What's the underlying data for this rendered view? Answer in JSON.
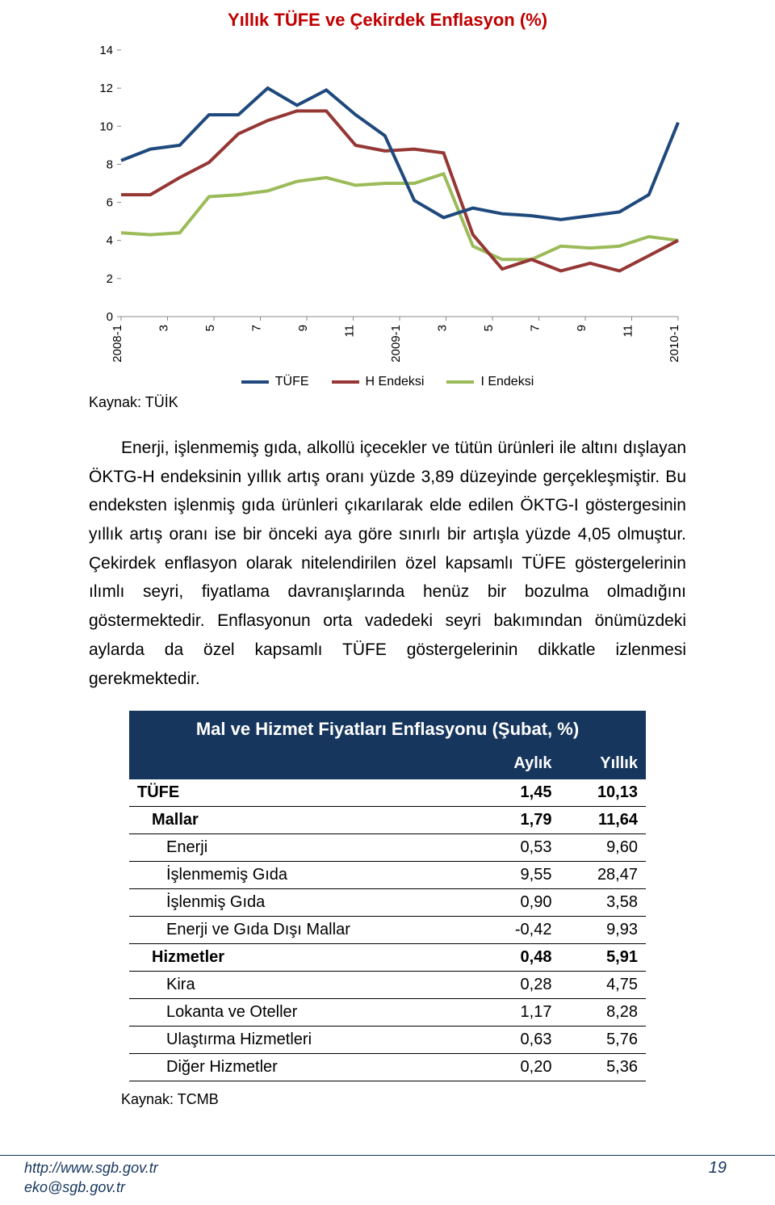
{
  "chart": {
    "type": "line",
    "title": "Yıllık TÜFE ve Çekirdek Enflasyon (%)",
    "title_color": "#c00000",
    "title_fontsize": 22,
    "background_color": "#ffffff",
    "xlabels": [
      "2008-1",
      "3",
      "5",
      "7",
      "9",
      "11",
      "2009-1",
      "3",
      "5",
      "7",
      "9",
      "11",
      "2010-1"
    ],
    "yticks": [
      0,
      2,
      4,
      6,
      8,
      10,
      12,
      14
    ],
    "ylim": [
      0,
      14
    ],
    "series": [
      {
        "name": "TÜFE",
        "color": "#1f497d",
        "values": [
          8.2,
          8.8,
          9.0,
          10.6,
          10.6,
          12.0,
          11.1,
          11.9,
          10.6,
          9.5,
          6.1,
          5.2,
          5.7,
          5.4,
          5.3,
          5.1,
          5.3,
          5.5,
          6.4,
          10.2
        ]
      },
      {
        "name": "H Endeksi",
        "color": "#953735",
        "values": [
          6.4,
          6.4,
          7.3,
          8.1,
          9.6,
          10.3,
          10.8,
          10.8,
          9.0,
          8.7,
          8.8,
          8.6,
          4.3,
          2.5,
          3.0,
          2.4,
          2.8,
          2.4,
          3.2,
          4.0
        ]
      },
      {
        "name": "I Endeksi",
        "color": "#9bbb59",
        "values": [
          4.4,
          4.3,
          4.4,
          6.3,
          6.4,
          6.6,
          7.1,
          7.3,
          6.9,
          7.0,
          7.0,
          7.5,
          3.7,
          3.0,
          3.0,
          3.7,
          3.6,
          3.7,
          4.2,
          4.0
        ]
      }
    ],
    "legend_labels": {
      "tufe": "TÜFE",
      "h": "H Endeksi",
      "i": "I Endeksi"
    },
    "source": "Kaynak: TÜİK",
    "label_fontsize": 15
  },
  "body": {
    "paragraph": "Enerji, işlenmemiş gıda, alkollü içecekler ve tütün ürünleri ile altını dışlayan ÖKTG-H endeksinin yıllık artış oranı yüzde 3,89 düzeyinde gerçekleşmiştir. Bu endeksten işlenmiş gıda ürünleri çıkarılarak elde edilen ÖKTG-I göstergesinin yıllık artış oranı ise bir önceki aya göre sınırlı bir artışla yüzde 4,05 olmuştur. Çekirdek enflasyon olarak nitelendirilen özel kapsamlı TÜFE göstergelerinin ılımlı seyri, fiyatlama davranışlarında henüz bir bozulma olmadığını göstermektedir. Enflasyonun orta vadedeki seyri bakımından önümüzdeki aylarda da özel kapsamlı TÜFE göstergelerinin dikkatle izlenmesi gerekmektedir."
  },
  "table": {
    "title": "Mal ve Hizmet Fiyatları Enflasyonu (Şubat, %)",
    "header_bg": "#17365d",
    "header_fg": "#ffffff",
    "columns": [
      "",
      "Aylık",
      "Yıllık"
    ],
    "rows": [
      {
        "label": "TÜFE",
        "aylik": "1,45",
        "yillik": "10,13",
        "indent": 0,
        "bold": true
      },
      {
        "label": "Mallar",
        "aylik": "1,79",
        "yillik": "11,64",
        "indent": 1,
        "bold": true
      },
      {
        "label": "Enerji",
        "aylik": "0,53",
        "yillik": "9,60",
        "indent": 2,
        "bold": false
      },
      {
        "label": "İşlenmemiş Gıda",
        "aylik": "9,55",
        "yillik": "28,47",
        "indent": 2,
        "bold": false
      },
      {
        "label": "İşlenmiş Gıda",
        "aylik": "0,90",
        "yillik": "3,58",
        "indent": 2,
        "bold": false
      },
      {
        "label": "Enerji ve Gıda Dışı Mallar",
        "aylik": "-0,42",
        "yillik": "9,93",
        "indent": 2,
        "bold": false
      },
      {
        "label": "Hizmetler",
        "aylik": "0,48",
        "yillik": "5,91",
        "indent": 1,
        "bold": true
      },
      {
        "label": "Kira",
        "aylik": "0,28",
        "yillik": "4,75",
        "indent": 2,
        "bold": false
      },
      {
        "label": "Lokanta ve Oteller",
        "aylik": "1,17",
        "yillik": "8,28",
        "indent": 2,
        "bold": false
      },
      {
        "label": "Ulaştırma Hizmetleri",
        "aylik": "0,63",
        "yillik": "5,76",
        "indent": 2,
        "bold": false
      },
      {
        "label": "Diğer Hizmetler",
        "aylik": "0,20",
        "yillik": "5,36",
        "indent": 2,
        "bold": false
      }
    ],
    "source": "Kaynak: TCMB"
  },
  "footer": {
    "url": "http://www.sgb.gov.tr",
    "email": "eko@sgb.gov.tr",
    "page": "19",
    "color": "#17365d"
  }
}
